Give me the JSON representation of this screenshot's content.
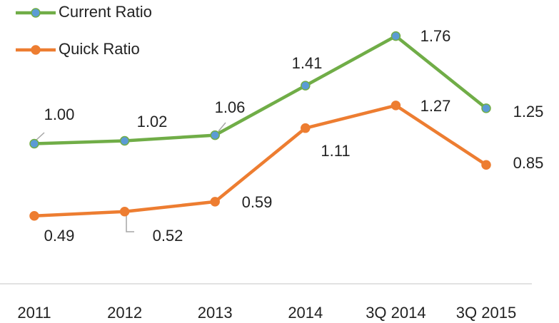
{
  "chart_data": {
    "type": "line",
    "categories": [
      "2011",
      "2012",
      "2013",
      "2014",
      "3Q 2014",
      "3Q 2015"
    ],
    "series": [
      {
        "name": "Current Ratio",
        "color": "#70ad47",
        "marker_color": "#5b9bd5",
        "values": [
          1.0,
          1.02,
          1.06,
          1.41,
          1.76,
          1.25
        ],
        "value_labels": [
          "1.00",
          "1.02",
          "1.06",
          "1.41",
          "1.76",
          "1.25"
        ]
      },
      {
        "name": "Quick Ratio",
        "color": "#ed7d31",
        "marker_color": "#ed7d31",
        "values": [
          0.49,
          0.52,
          0.59,
          1.11,
          1.27,
          0.85
        ],
        "value_labels": [
          "0.49",
          "0.52",
          "0.59",
          "1.11",
          "1.27",
          "0.85"
        ]
      }
    ],
    "ylim": [
      0,
      2
    ],
    "legend": "top-left"
  }
}
